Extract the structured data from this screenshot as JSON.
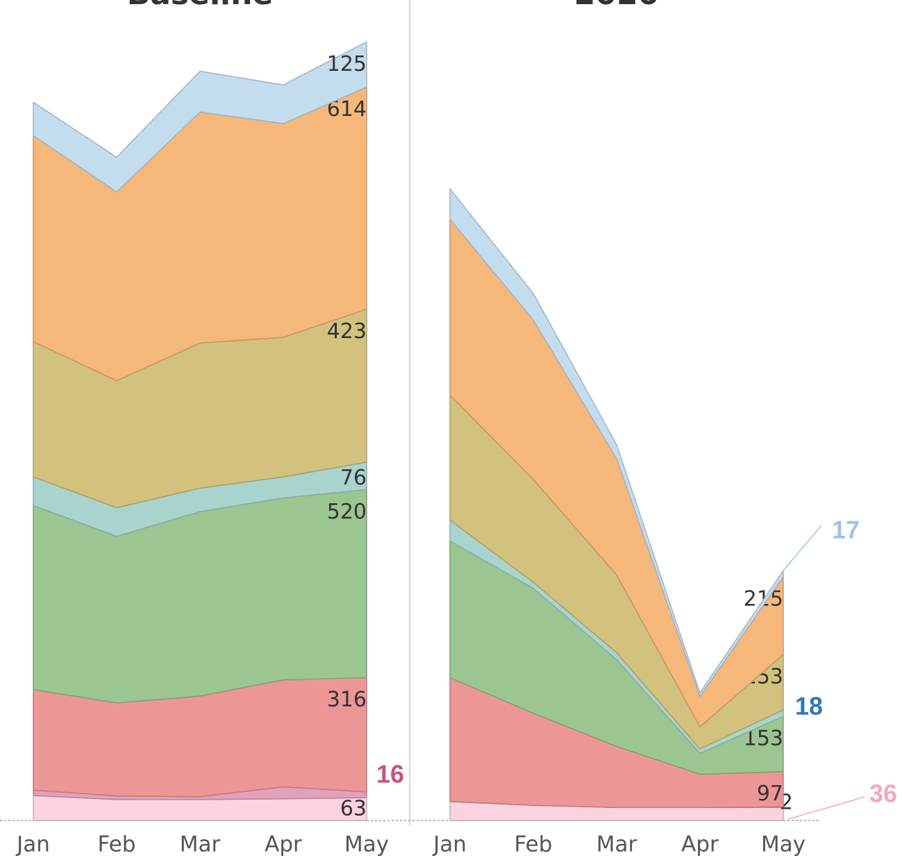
{
  "chart_data": [
    {
      "type": "area",
      "title": "Baseline",
      "categories": [
        "Jan",
        "Feb",
        "Mar",
        "Apr",
        "May"
      ],
      "series": [
        {
          "color": "#fbd3e0",
          "values": [
            69,
            58,
            58,
            60,
            63
          ]
        },
        {
          "color": "#e3a0bb",
          "values": [
            15,
            10,
            8,
            33,
            16
          ]
        },
        {
          "color": "#ed9696",
          "values": [
            278,
            257,
            278,
            296,
            316
          ]
        },
        {
          "color": "#9bc591",
          "values": [
            509,
            461,
            510,
            503,
            520
          ]
        },
        {
          "color": "#a9d3cd",
          "values": [
            79,
            79,
            65,
            58,
            76
          ]
        },
        {
          "color": "#d3c27d",
          "values": [
            374,
            351,
            401,
            386,
            423
          ]
        },
        {
          "color": "#f5b77a",
          "values": [
            570,
            522,
            639,
            591,
            614
          ]
        },
        {
          "color": "#c3dcee",
          "values": [
            92,
            96,
            113,
            107,
            125
          ]
        }
      ]
    },
    {
      "type": "area",
      "title": "2020",
      "categories": [
        "Jan",
        "Feb",
        "Mar",
        "Apr",
        "May"
      ],
      "series": [
        {
          "color": "#fbd3e0",
          "values": [
            52,
            42,
            36,
            36,
            36
          ]
        },
        {
          "color": "#e3a0bb",
          "values": [
            1,
            0,
            0,
            0,
            2
          ]
        },
        {
          "color": "#ed9696",
          "values": [
            342,
            255,
            169,
            92,
            97
          ]
        },
        {
          "color": "#9bc591",
          "values": [
            378,
            345,
            240,
            58,
            153
          ]
        },
        {
          "color": "#a9d3cd",
          "values": [
            58,
            17,
            19,
            12,
            18
          ]
        },
        {
          "color": "#d3c27d",
          "values": [
            345,
            284,
            215,
            61,
            153
          ]
        },
        {
          "color": "#f5b77a",
          "values": [
            487,
            441,
            322,
            84,
            215
          ]
        },
        {
          "color": "#c3dcee",
          "values": [
            84,
            73,
            38,
            10,
            17
          ]
        }
      ]
    }
  ]
}
